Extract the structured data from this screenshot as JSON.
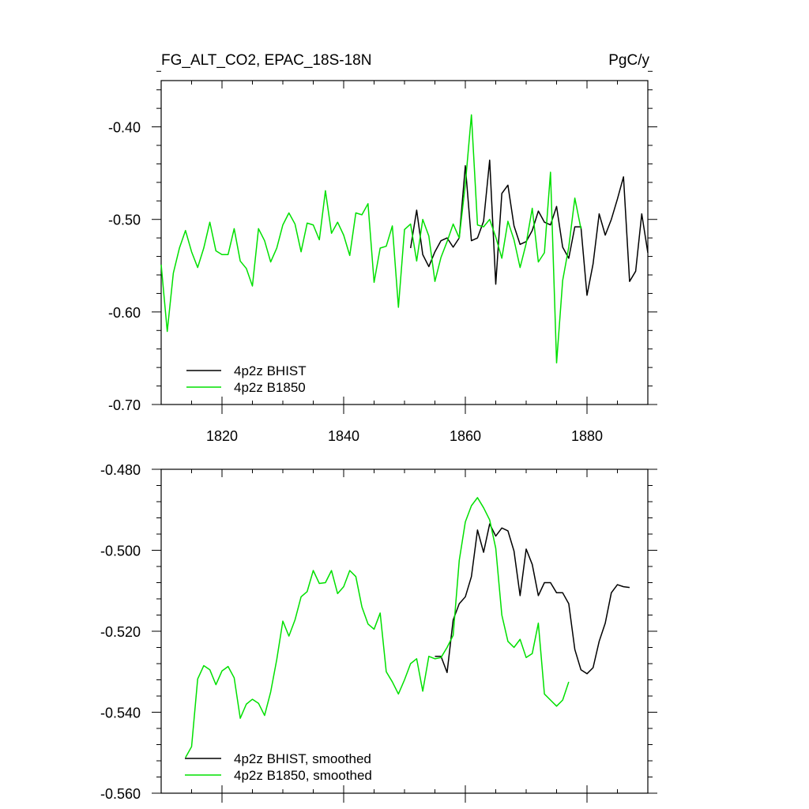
{
  "chart_data": [
    {
      "type": "line",
      "title_left": "FG_ALT_CO2, EPAC_18S-18N",
      "title_right": "PgC/y",
      "xlim": [
        1810,
        1890
      ],
      "ylim": [
        -0.7,
        -0.35
      ],
      "x_ticks": [
        1820,
        1840,
        1860,
        1880
      ],
      "x_tick_labels": [
        "1820",
        "1840",
        "1860",
        "1880"
      ],
      "y_ticks": [
        -0.4,
        -0.5,
        -0.6,
        -0.7
      ],
      "y_tick_labels": [
        "-0.40",
        "-0.50",
        "-0.60",
        "-0.70"
      ],
      "legend_position": "bottom-left",
      "series": [
        {
          "name": "4p2z BHIST",
          "color": "#000000",
          "x": [
            1851,
            1852,
            1853,
            1854,
            1855,
            1856,
            1857,
            1858,
            1859,
            1860,
            1861,
            1862,
            1863,
            1864,
            1865,
            1866,
            1867,
            1868,
            1869,
            1870,
            1871,
            1872,
            1873,
            1874,
            1875,
            1876,
            1877,
            1878,
            1879,
            1880,
            1881,
            1882,
            1883,
            1884,
            1885,
            1886,
            1887,
            1888,
            1889,
            1890
          ],
          "y": [
            -0.531,
            -0.49,
            -0.538,
            -0.551,
            -0.535,
            -0.523,
            -0.52,
            -0.53,
            -0.52,
            -0.442,
            -0.523,
            -0.52,
            -0.502,
            -0.436,
            -0.57,
            -0.472,
            -0.463,
            -0.507,
            -0.527,
            -0.524,
            -0.512,
            -0.491,
            -0.503,
            -0.506,
            -0.486,
            -0.53,
            -0.542,
            -0.508,
            -0.508,
            -0.582,
            -0.548,
            -0.494,
            -0.517,
            -0.5,
            -0.478,
            -0.454,
            -0.567,
            -0.556,
            -0.494,
            -0.536
          ]
        },
        {
          "name": "4p2z B1850",
          "color": "#00e000",
          "x": [
            1810,
            1811,
            1812,
            1813,
            1814,
            1815,
            1816,
            1817,
            1818,
            1819,
            1820,
            1821,
            1822,
            1823,
            1824,
            1825,
            1826,
            1827,
            1828,
            1829,
            1830,
            1831,
            1832,
            1833,
            1834,
            1835,
            1836,
            1837,
            1838,
            1839,
            1840,
            1841,
            1842,
            1843,
            1844,
            1845,
            1846,
            1847,
            1848,
            1849,
            1850,
            1851,
            1852,
            1853,
            1854,
            1855,
            1856,
            1857,
            1858,
            1859,
            1860,
            1861,
            1862,
            1863,
            1864,
            1865,
            1866,
            1867,
            1868,
            1869,
            1870,
            1871,
            1872,
            1873,
            1874,
            1875,
            1876,
            1877,
            1878,
            1879,
            1880
          ],
          "y": [
            -0.549,
            -0.621,
            -0.558,
            -0.531,
            -0.512,
            -0.535,
            -0.552,
            -0.531,
            -0.503,
            -0.534,
            -0.538,
            -0.538,
            -0.51,
            -0.545,
            -0.553,
            -0.572,
            -0.51,
            -0.523,
            -0.546,
            -0.531,
            -0.506,
            -0.493,
            -0.505,
            -0.535,
            -0.504,
            -0.506,
            -0.522,
            -0.469,
            -0.515,
            -0.503,
            -0.517,
            -0.539,
            -0.493,
            -0.495,
            -0.483,
            -0.568,
            -0.531,
            -0.529,
            -0.507,
            -0.595,
            -0.511,
            -0.505,
            -0.545,
            -0.5,
            -0.518,
            -0.567,
            -0.541,
            -0.524,
            -0.505,
            -0.52,
            -0.462,
            -0.387,
            -0.506,
            -0.508,
            -0.5,
            -0.519,
            -0.542,
            -0.502,
            -0.522,
            -0.552,
            -0.526,
            -0.488,
            -0.546,
            -0.536,
            -0.449,
            -0.655,
            -0.566,
            -0.53,
            -0.477,
            -0.51,
            null
          ]
        }
      ]
    },
    {
      "type": "line",
      "xlim": [
        1810,
        1890
      ],
      "ylim": [
        -0.56,
        -0.48
      ],
      "x_ticks": [
        1820,
        1840,
        1860,
        1880
      ],
      "y_ticks": [
        -0.48,
        -0.5,
        -0.52,
        -0.54,
        -0.56
      ],
      "y_tick_labels": [
        "-0.480",
        "-0.500",
        "-0.520",
        "-0.540",
        "-0.560"
      ],
      "legend_position": "bottom-left",
      "series": [
        {
          "name": "4p2z BHIST, smoothed",
          "color": "#000000",
          "x": [
            1855,
            1856,
            1857,
            1858,
            1859,
            1860,
            1861,
            1862,
            1863,
            1864,
            1865,
            1866,
            1867,
            1868,
            1869,
            1870,
            1871,
            1872,
            1873,
            1874,
            1875,
            1876,
            1877,
            1878,
            1879,
            1880,
            1881,
            1882,
            1883,
            1884,
            1885,
            1886,
            1887
          ],
          "y": [
            -0.5262,
            -0.5262,
            -0.5302,
            -0.5172,
            -0.5132,
            -0.5115,
            -0.5065,
            -0.495,
            -0.5005,
            -0.4935,
            -0.4965,
            -0.4945,
            -0.4952,
            -0.5002,
            -0.5112,
            -0.4997,
            -0.5035,
            -0.5112,
            -0.508,
            -0.508,
            -0.5105,
            -0.5105,
            -0.5132,
            -0.5245,
            -0.5295,
            -0.5305,
            -0.529,
            -0.5225,
            -0.518,
            -0.5105,
            -0.5085,
            -0.509,
            -0.5092
          ]
        },
        {
          "name": "4p2z B1850, smoothed",
          "color": "#00e000",
          "x": [
            1814,
            1815,
            1816,
            1817,
            1818,
            1819,
            1820,
            1821,
            1822,
            1823,
            1824,
            1825,
            1826,
            1827,
            1828,
            1829,
            1830,
            1831,
            1832,
            1833,
            1834,
            1835,
            1836,
            1837,
            1838,
            1839,
            1840,
            1841,
            1842,
            1843,
            1844,
            1845,
            1846,
            1847,
            1848,
            1849,
            1850,
            1851,
            1852,
            1853,
            1854,
            1855,
            1856,
            1857,
            1858,
            1859,
            1860,
            1861,
            1862,
            1863,
            1864,
            1865,
            1866,
            1867,
            1868,
            1869,
            1870,
            1871,
            1872,
            1873,
            1874,
            1875,
            1876,
            1877,
            1878,
            1879,
            1880,
            1881,
            1882,
            1883,
            1884,
            1885,
            1886,
            1887
          ],
          "y": [
            -0.5512,
            -0.5485,
            -0.5318,
            -0.5285,
            -0.5295,
            -0.5332,
            -0.5298,
            -0.5287,
            -0.5315,
            -0.5415,
            -0.538,
            -0.5368,
            -0.5378,
            -0.5408,
            -0.535,
            -0.527,
            -0.5175,
            -0.5212,
            -0.5172,
            -0.5115,
            -0.5102,
            -0.505,
            -0.5082,
            -0.508,
            -0.505,
            -0.5107,
            -0.509,
            -0.505,
            -0.5065,
            -0.514,
            -0.5182,
            -0.5195,
            -0.5155,
            -0.53,
            -0.5325,
            -0.5355,
            -0.532,
            -0.528,
            -0.5268,
            -0.5348,
            -0.5262,
            -0.5268,
            -0.5265,
            -0.524,
            -0.521,
            -0.5025,
            -0.493,
            -0.489,
            -0.487,
            -0.4895,
            -0.4925,
            -0.4995,
            -0.516,
            -0.5225,
            -0.524,
            -0.522,
            -0.5265,
            -0.5255,
            -0.518,
            -0.5355,
            -0.537,
            -0.5385,
            -0.537,
            -0.5325,
            null,
            null,
            null,
            null,
            null,
            null,
            null,
            null,
            null,
            null
          ]
        }
      ]
    }
  ]
}
